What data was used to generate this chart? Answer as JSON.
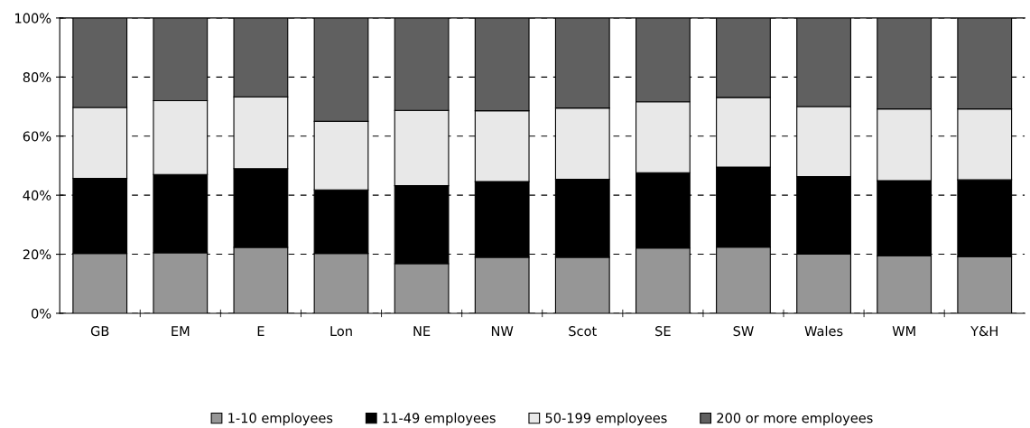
{
  "chart_data": {
    "type": "bar",
    "stacked": true,
    "categories": [
      "GB",
      "EM",
      "E",
      "Lon",
      "NE",
      "NW",
      "Scot",
      "SE",
      "SW",
      "Wales",
      "WM",
      "Y&H"
    ],
    "series": [
      {
        "name": "1-10 employees",
        "color": "#969696",
        "values": [
          20.3,
          20.5,
          22.3,
          20.3,
          16.8,
          19,
          19,
          22.1,
          22.4,
          20,
          19.5,
          19.2
        ]
      },
      {
        "name": "11-49 employees",
        "color": "#000000",
        "values": [
          25.4,
          26.5,
          26.7,
          21.5,
          26.4,
          25.6,
          26.4,
          25.5,
          27.1,
          26.3,
          25.4,
          26
        ]
      },
      {
        "name": "50-199 employees",
        "color": "#e8e8e8",
        "values": [
          24,
          25,
          24.3,
          23.2,
          25.5,
          24,
          24.1,
          24,
          23.6,
          23.7,
          24.3,
          24
        ]
      },
      {
        "name": "200 or more employees",
        "color": "#606060",
        "values": [
          30.3,
          28,
          26.7,
          35,
          31.3,
          31.4,
          30.5,
          28.4,
          26.9,
          30,
          30.8,
          30.8
        ]
      }
    ],
    "ylim": [
      0,
      100
    ],
    "yticks": [
      {
        "value": 0,
        "label": "0%"
      },
      {
        "value": 20,
        "label": "20%"
      },
      {
        "value": 40,
        "label": "40%"
      },
      {
        "value": 60,
        "label": "60%"
      },
      {
        "value": 80,
        "label": "80%"
      },
      {
        "value": 100,
        "label": "100%"
      }
    ],
    "grid": "y",
    "legend": "bottom"
  }
}
